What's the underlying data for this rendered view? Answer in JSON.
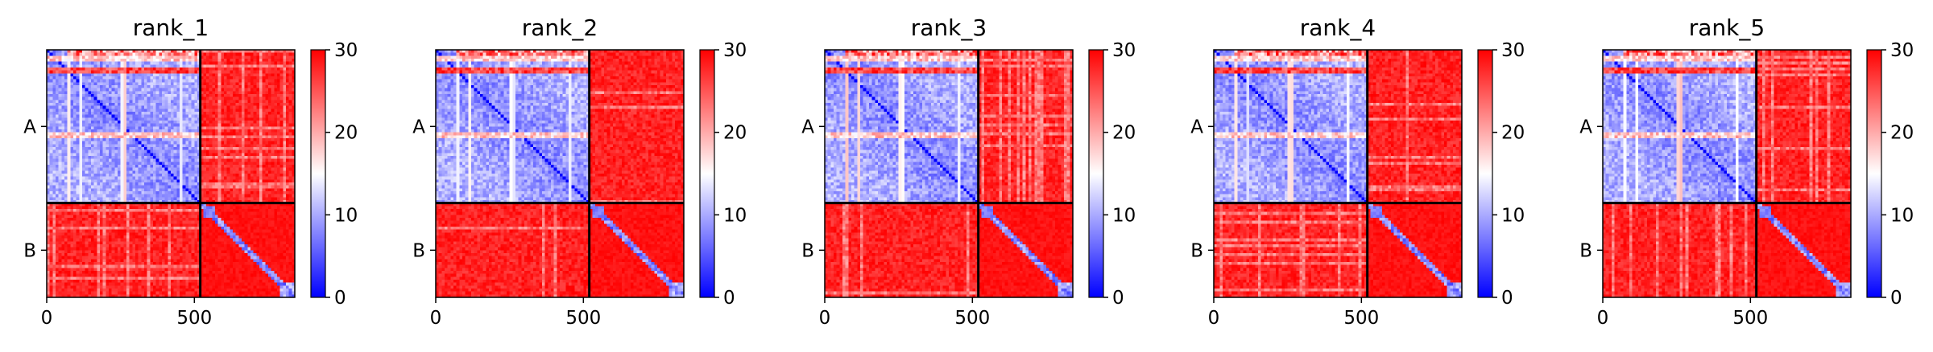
{
  "chart_data": [
    {
      "type": "heatmap",
      "title": "rank_1",
      "xticks": [
        "0",
        "500"
      ],
      "row_labels": [
        "A",
        "B"
      ],
      "colorbar": {
        "ticks": [
          "0",
          "10",
          "20",
          "30"
        ],
        "range": [
          0,
          30
        ],
        "colormap": [
          "#0000ff",
          "#ffffff",
          "#ff0000"
        ]
      },
      "xlim": [
        0,
        840
      ],
      "ylim": [
        840,
        0
      ],
      "chain_break": 520,
      "xlabel": "",
      "ylabel": ""
    },
    {
      "type": "heatmap",
      "title": "rank_2",
      "xticks": [
        "0",
        "500"
      ],
      "row_labels": [
        "A",
        "B"
      ],
      "colorbar": {
        "ticks": [
          "0",
          "10",
          "20",
          "30"
        ],
        "range": [
          0,
          30
        ],
        "colormap": [
          "#0000ff",
          "#ffffff",
          "#ff0000"
        ]
      },
      "xlim": [
        0,
        840
      ],
      "ylim": [
        840,
        0
      ],
      "chain_break": 520,
      "xlabel": "",
      "ylabel": ""
    },
    {
      "type": "heatmap",
      "title": "rank_3",
      "xticks": [
        "0",
        "500"
      ],
      "row_labels": [
        "A",
        "B"
      ],
      "colorbar": {
        "ticks": [
          "0",
          "10",
          "20",
          "30"
        ],
        "range": [
          0,
          30
        ],
        "colormap": [
          "#0000ff",
          "#ffffff",
          "#ff0000"
        ]
      },
      "xlim": [
        0,
        840
      ],
      "ylim": [
        840,
        0
      ],
      "chain_break": 520,
      "xlabel": "",
      "ylabel": ""
    },
    {
      "type": "heatmap",
      "title": "rank_4",
      "xticks": [
        "0",
        "500"
      ],
      "row_labels": [
        "A",
        "B"
      ],
      "colorbar": {
        "ticks": [
          "0",
          "10",
          "20",
          "30"
        ],
        "range": [
          0,
          30
        ],
        "colormap": [
          "#0000ff",
          "#ffffff",
          "#ff0000"
        ]
      },
      "xlim": [
        0,
        840
      ],
      "ylim": [
        840,
        0
      ],
      "chain_break": 520,
      "xlabel": "",
      "ylabel": ""
    },
    {
      "type": "heatmap",
      "title": "rank_5",
      "xticks": [
        "0",
        "500"
      ],
      "row_labels": [
        "A",
        "B"
      ],
      "colorbar": {
        "ticks": [
          "0",
          "10",
          "20",
          "30"
        ],
        "range": [
          0,
          30
        ],
        "colormap": [
          "#0000ff",
          "#ffffff",
          "#ff0000"
        ]
      },
      "xlim": [
        0,
        840
      ],
      "ylim": [
        840,
        0
      ],
      "chain_break": 520,
      "xlabel": "",
      "ylabel": ""
    }
  ]
}
